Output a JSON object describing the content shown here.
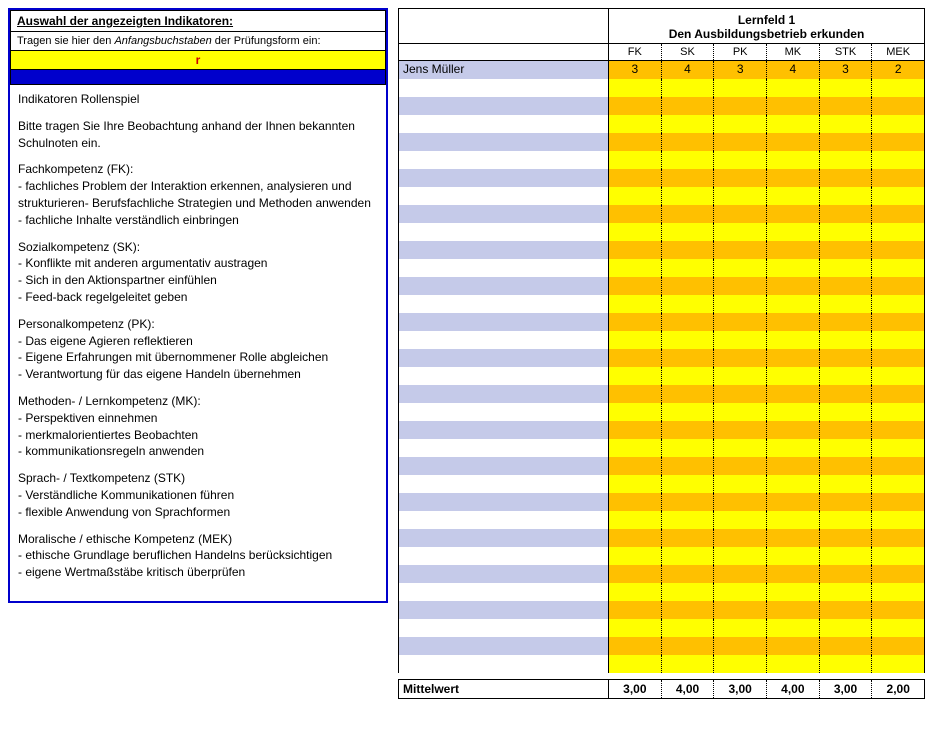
{
  "left": {
    "header_title": "Auswahl der angezeigten Indikatoren:",
    "header_sub_pre": "Tragen sie hier den ",
    "header_sub_italic": "Anfangsbuchstaben",
    "header_sub_post": " der Prüfungsform ein:",
    "input_value": "r",
    "body_title": "Indikatoren Rollenspiel",
    "body_intro": "Bitte tragen Sie Ihre Beobachtung anhand der Ihnen bekannten Schulnoten ein.",
    "sections": [
      {
        "title": "Fachkompetenz (FK):",
        "items": [
          "- fachliches Problem der Interaktion erkennen, analysieren und strukturieren- Berufsfachliche Strategien und Methoden anwenden",
          "- fachliche Inhalte verständlich einbringen"
        ]
      },
      {
        "title": "Sozialkompetenz (SK):",
        "items": [
          "- Konflikte mit anderen argumentativ austragen",
          "- Sich in den Aktionspartner einfühlen",
          "- Feed-back regelgeleitet geben"
        ]
      },
      {
        "title": "Personalkompetenz (PK):",
        "items": [
          "- Das eigene Agieren reflektieren",
          "- Eigene Erfahrungen mit übernommener Rolle abgleichen",
          "- Verantwortung für das eigene Handeln übernehmen"
        ]
      },
      {
        "title": "Methoden- / Lernkompetenz (MK):",
        "items": [
          "- Perspektiven einnehmen",
          "- merkmalorientiertes Beobachten",
          "- kommunikationsregeln anwenden"
        ]
      },
      {
        "title": "Sprach- / Textkompetenz (STK)",
        "items": [
          "- Verständliche Kommunikationen führen",
          "- flexible Anwendung von Sprachformen"
        ]
      },
      {
        "title": "Moralische / ethische Kompetenz (MEK)",
        "items": [
          "- ethische Grundlage beruflichen Handelns berücksichtigen",
          "- eigene Wertmaßstäbe kritisch überprüfen"
        ]
      }
    ]
  },
  "right": {
    "title_main": "Lernfeld 1",
    "title_sub": "Den Ausbildungsbetrieb erkunden",
    "columns": [
      "FK",
      "SK",
      "PK",
      "MK",
      "STK",
      "MEK"
    ],
    "row_count": 34,
    "rows": [
      {
        "name": "Jens Müller",
        "values": [
          "3",
          "4",
          "3",
          "4",
          "3",
          "2"
        ]
      }
    ],
    "colors": {
      "name_even": "#c5cae9",
      "name_odd": "#ffffff",
      "val_yellow": "#ffff00",
      "val_orange": "#ffc000"
    },
    "footer_label": "Mittelwert",
    "footer_values": [
      "3,00",
      "4,00",
      "3,00",
      "4,00",
      "3,00",
      "2,00"
    ]
  }
}
